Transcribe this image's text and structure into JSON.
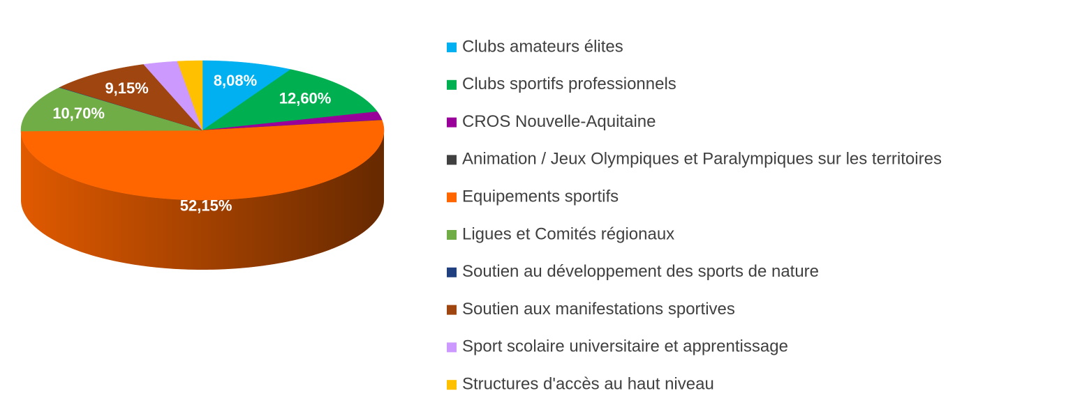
{
  "chart_data": {
    "type": "pie3d",
    "categories": [
      "Clubs amateurs élites",
      "Clubs sportifs professionnels",
      "CROS Nouvelle-Aquitaine",
      "Animation / Jeux Olympiques et Paralympiques sur les territoires",
      "Equipements sportifs",
      "Ligues et Comités régionaux",
      "Soutien au développement des sports de nature",
      "Soutien aux manifestations sportives",
      "Sport scolaire universitaire et apprentissage",
      "Structures d'accès au haut niveau"
    ],
    "values": [
      8.08,
      12.6,
      1.95,
      0.05,
      52.15,
      10.7,
      0.07,
      9.15,
      3.05,
      2.2
    ],
    "value_labels": [
      "8,08%",
      "12,60%",
      null,
      null,
      "52,15%",
      "10,70%",
      null,
      "9,15%",
      null,
      null
    ],
    "colors": [
      "#00b0f0",
      "#00b050",
      "#990099",
      "#404040",
      "#ff6600",
      "#70ad47",
      "#1f3f7f",
      "#9e4510",
      "#cc99ff",
      "#ffc000"
    ],
    "legend": "right"
  }
}
